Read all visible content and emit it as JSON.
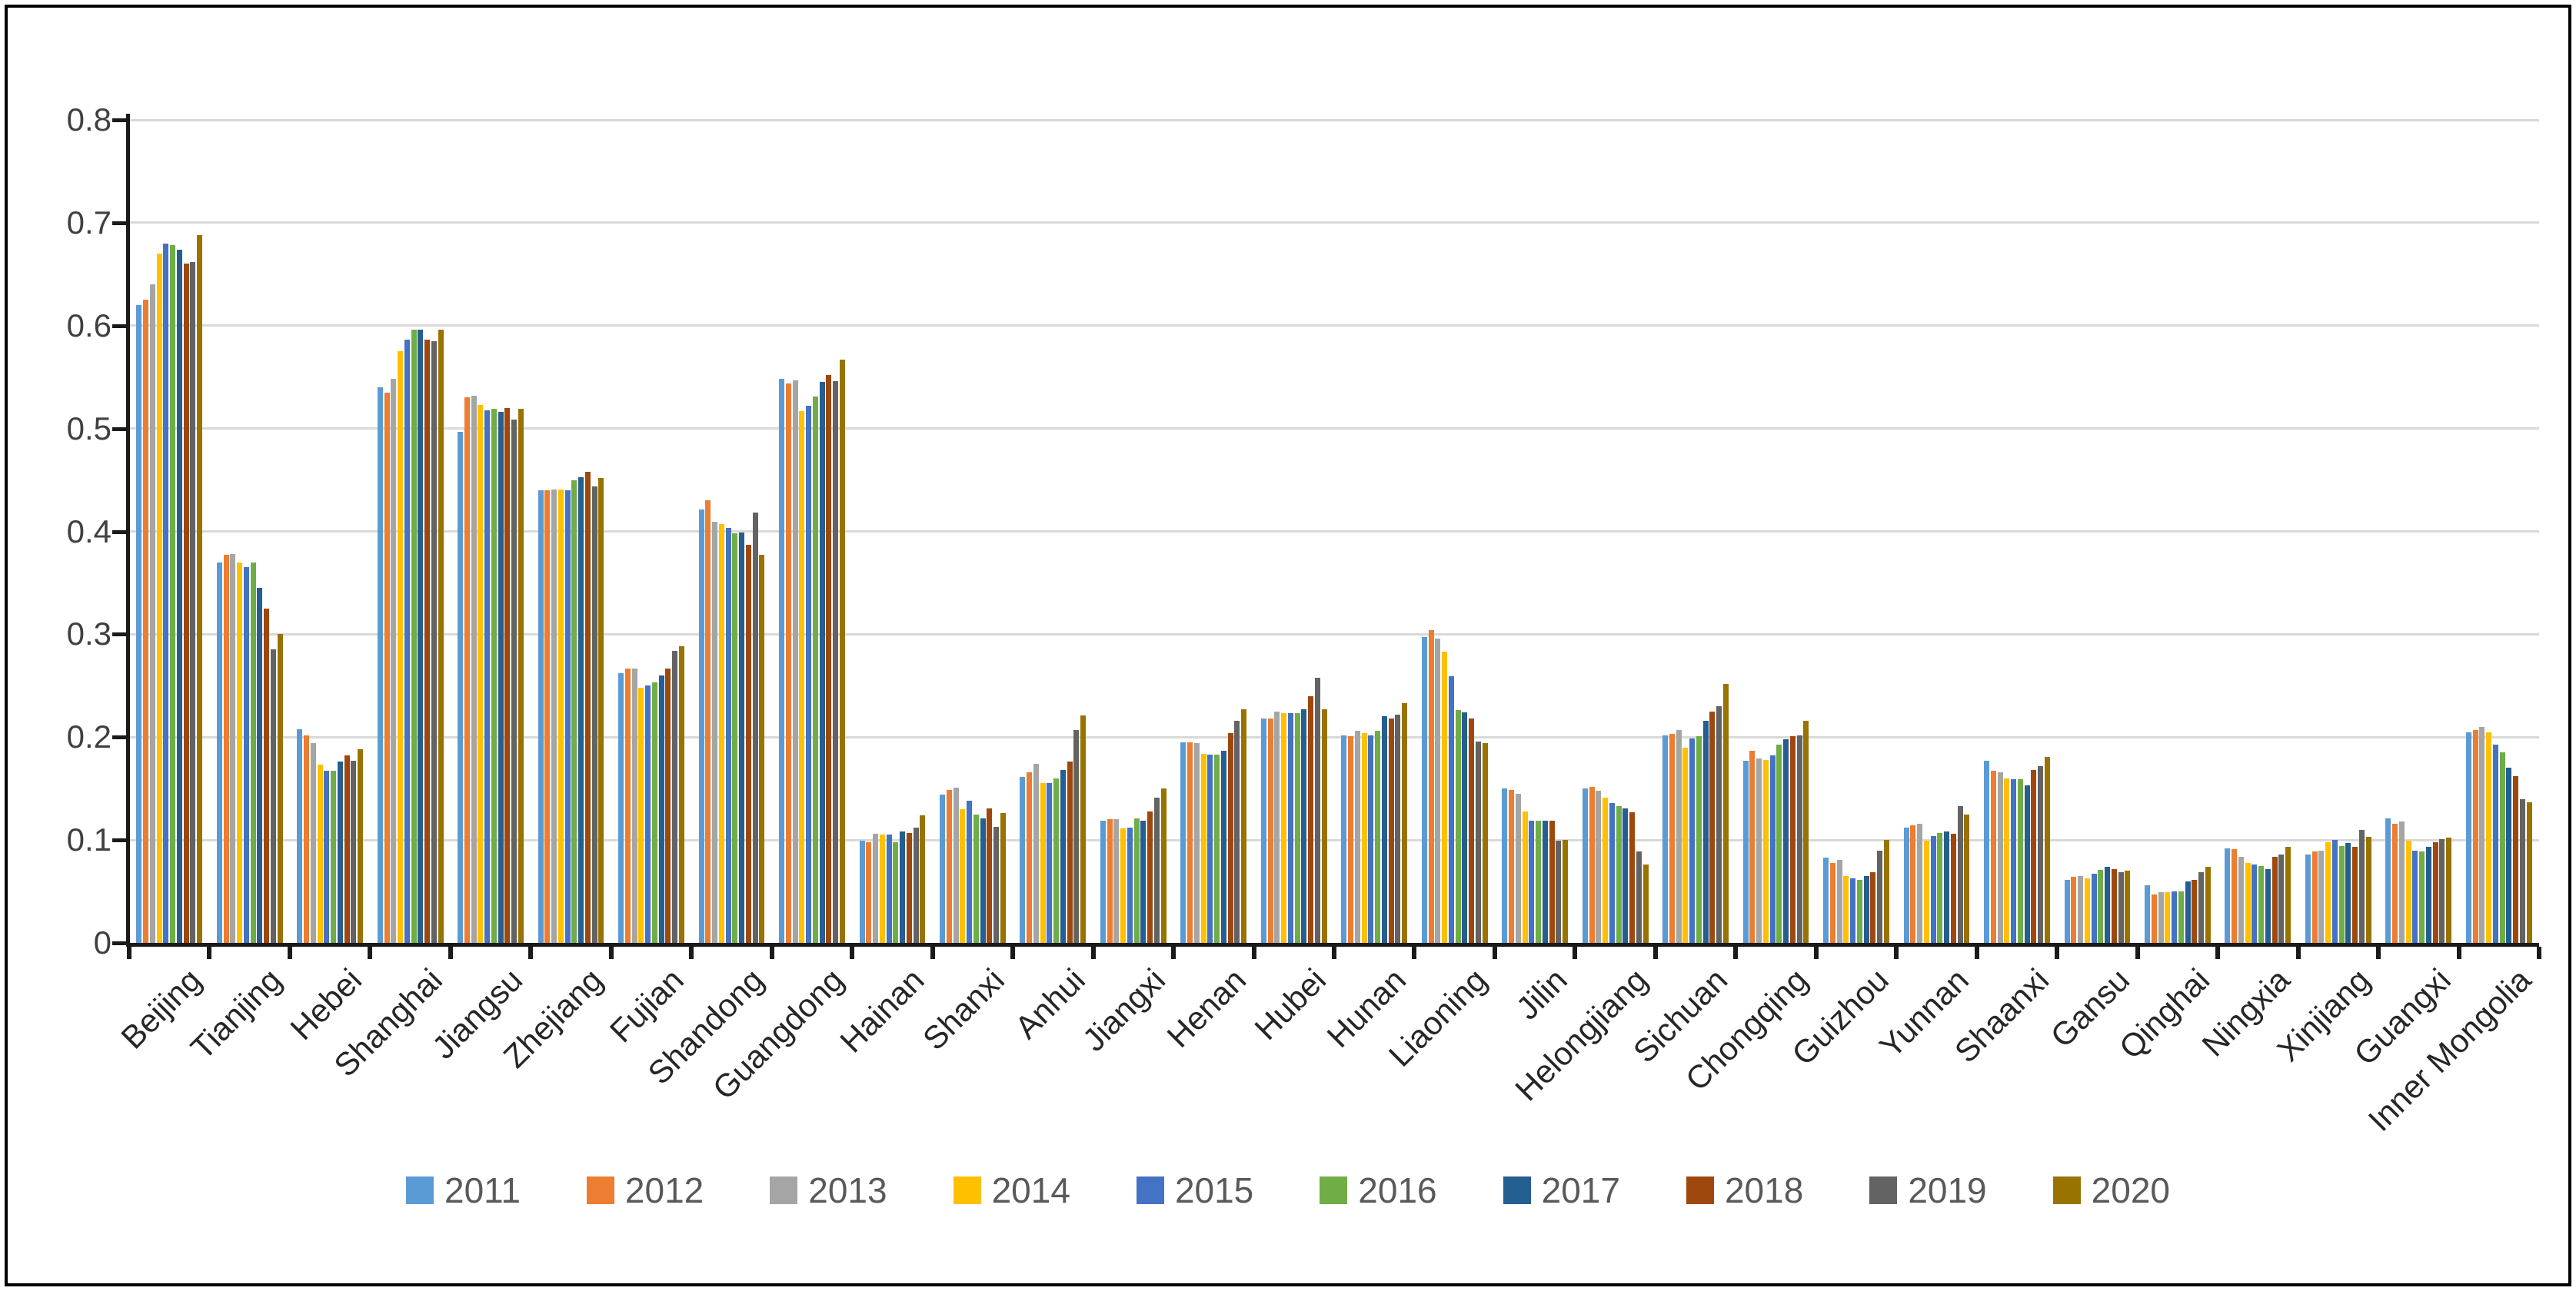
{
  "figure": {
    "background": "#ffffff",
    "border_color": "#000000",
    "gridline_color": "#d9d9d9",
    "axis_color": "#1a1a1a"
  },
  "chart_data": {
    "type": "bar",
    "title": "",
    "xlabel": "",
    "ylabel": "",
    "ylim": [
      0,
      0.8
    ],
    "ytick_labels": [
      "0.8",
      "0.7",
      "0.6",
      "0.5",
      "0.4",
      "0.3",
      "0.2",
      "0.1",
      "0"
    ],
    "grid": true,
    "legend_position": "bottom",
    "categories": [
      "Beijing",
      "Tianjing",
      "Hebei",
      "Shanghai",
      "Jiangsu",
      "Zhejiang",
      "Fujian",
      "Shandong",
      "Guangdong",
      "Hainan",
      "Shanxi",
      "Anhui",
      "Jiangxi",
      "Henan",
      "Hubei",
      "Hunan",
      "Liaoning",
      "Jilin",
      "Helongjiang",
      "Sichuan",
      "Chongqing",
      "Guizhou",
      "Yunnan",
      "Shaanxi",
      "Gansu",
      "Qinghai",
      "Ningxia",
      "Xinjiang",
      "Guangxi",
      "Inner Mongolia"
    ],
    "series": [
      {
        "name": "2011",
        "color": "#5B9BD5",
        "values": [
          0.62,
          0.37,
          0.208,
          0.54,
          0.497,
          0.44,
          0.262,
          0.421,
          0.548,
          0.099,
          0.144,
          0.161,
          0.119,
          0.195,
          0.218,
          0.202,
          0.297,
          0.15,
          0.15,
          0.202,
          0.177,
          0.083,
          0.112,
          0.177,
          0.061,
          0.056,
          0.092,
          0.086,
          0.121,
          0.205
        ]
      },
      {
        "name": "2012",
        "color": "#ED7D31",
        "values": [
          0.625,
          0.377,
          0.202,
          0.535,
          0.53,
          0.44,
          0.267,
          0.43,
          0.544,
          0.098,
          0.149,
          0.166,
          0.12,
          0.195,
          0.218,
          0.201,
          0.304,
          0.149,
          0.152,
          0.203,
          0.187,
          0.078,
          0.114,
          0.167,
          0.064,
          0.047,
          0.091,
          0.089,
          0.116,
          0.207
        ]
      },
      {
        "name": "2013",
        "color": "#A5A5A5",
        "values": [
          0.64,
          0.378,
          0.194,
          0.548,
          0.532,
          0.441,
          0.267,
          0.409,
          0.547,
          0.106,
          0.151,
          0.174,
          0.12,
          0.194,
          0.225,
          0.206,
          0.296,
          0.145,
          0.148,
          0.207,
          0.179,
          0.081,
          0.116,
          0.166,
          0.065,
          0.049,
          0.084,
          0.09,
          0.118,
          0.21
        ]
      },
      {
        "name": "2014",
        "color": "#FFC000",
        "values": [
          0.67,
          0.37,
          0.173,
          0.575,
          0.523,
          0.441,
          0.248,
          0.407,
          0.517,
          0.105,
          0.13,
          0.155,
          0.111,
          0.184,
          0.223,
          0.204,
          0.283,
          0.128,
          0.141,
          0.19,
          0.178,
          0.065,
          0.099,
          0.16,
          0.063,
          0.049,
          0.078,
          0.098,
          0.099,
          0.205
        ]
      },
      {
        "name": "2015",
        "color": "#4472C4",
        "values": [
          0.68,
          0.365,
          0.167,
          0.586,
          0.518,
          0.44,
          0.25,
          0.403,
          0.522,
          0.105,
          0.138,
          0.155,
          0.112,
          0.183,
          0.223,
          0.202,
          0.259,
          0.119,
          0.136,
          0.199,
          0.182,
          0.063,
          0.104,
          0.159,
          0.067,
          0.05,
          0.076,
          0.1,
          0.09,
          0.193
        ]
      },
      {
        "name": "2016",
        "color": "#70AD47",
        "values": [
          0.678,
          0.37,
          0.167,
          0.596,
          0.519,
          0.45,
          0.253,
          0.398,
          0.531,
          0.098,
          0.125,
          0.16,
          0.121,
          0.183,
          0.223,
          0.206,
          0.226,
          0.119,
          0.133,
          0.201,
          0.193,
          0.061,
          0.107,
          0.159,
          0.071,
          0.05,
          0.075,
          0.094,
          0.089,
          0.185
        ]
      },
      {
        "name": "2017",
        "color": "#255E91",
        "values": [
          0.674,
          0.345,
          0.176,
          0.596,
          0.516,
          0.453,
          0.26,
          0.399,
          0.545,
          0.108,
          0.121,
          0.168,
          0.119,
          0.187,
          0.227,
          0.22,
          0.224,
          0.119,
          0.131,
          0.216,
          0.198,
          0.065,
          0.108,
          0.153,
          0.074,
          0.06,
          0.072,
          0.097,
          0.093,
          0.17
        ]
      },
      {
        "name": "2018",
        "color": "#9E480E",
        "values": [
          0.66,
          0.325,
          0.182,
          0.586,
          0.52,
          0.458,
          0.267,
          0.387,
          0.552,
          0.107,
          0.131,
          0.176,
          0.128,
          0.204,
          0.24,
          0.218,
          0.218,
          0.119,
          0.127,
          0.225,
          0.201,
          0.069,
          0.106,
          0.168,
          0.072,
          0.061,
          0.084,
          0.093,
          0.098,
          0.162
        ]
      },
      {
        "name": "2019",
        "color": "#636363",
        "values": [
          0.662,
          0.285,
          0.177,
          0.585,
          0.509,
          0.444,
          0.284,
          0.418,
          0.546,
          0.112,
          0.113,
          0.207,
          0.141,
          0.216,
          0.258,
          0.222,
          0.196,
          0.099,
          0.089,
          0.23,
          0.202,
          0.09,
          0.133,
          0.172,
          0.069,
          0.069,
          0.086,
          0.11,
          0.101,
          0.14
        ]
      },
      {
        "name": "2020",
        "color": "#997300",
        "values": [
          0.688,
          0.3,
          0.188,
          0.596,
          0.519,
          0.452,
          0.288,
          0.377,
          0.567,
          0.124,
          0.126,
          0.221,
          0.15,
          0.227,
          0.227,
          0.233,
          0.194,
          0.1,
          0.076,
          0.252,
          0.216,
          0.1,
          0.125,
          0.181,
          0.07,
          0.074,
          0.093,
          0.103,
          0.102,
          0.137
        ]
      }
    ]
  }
}
